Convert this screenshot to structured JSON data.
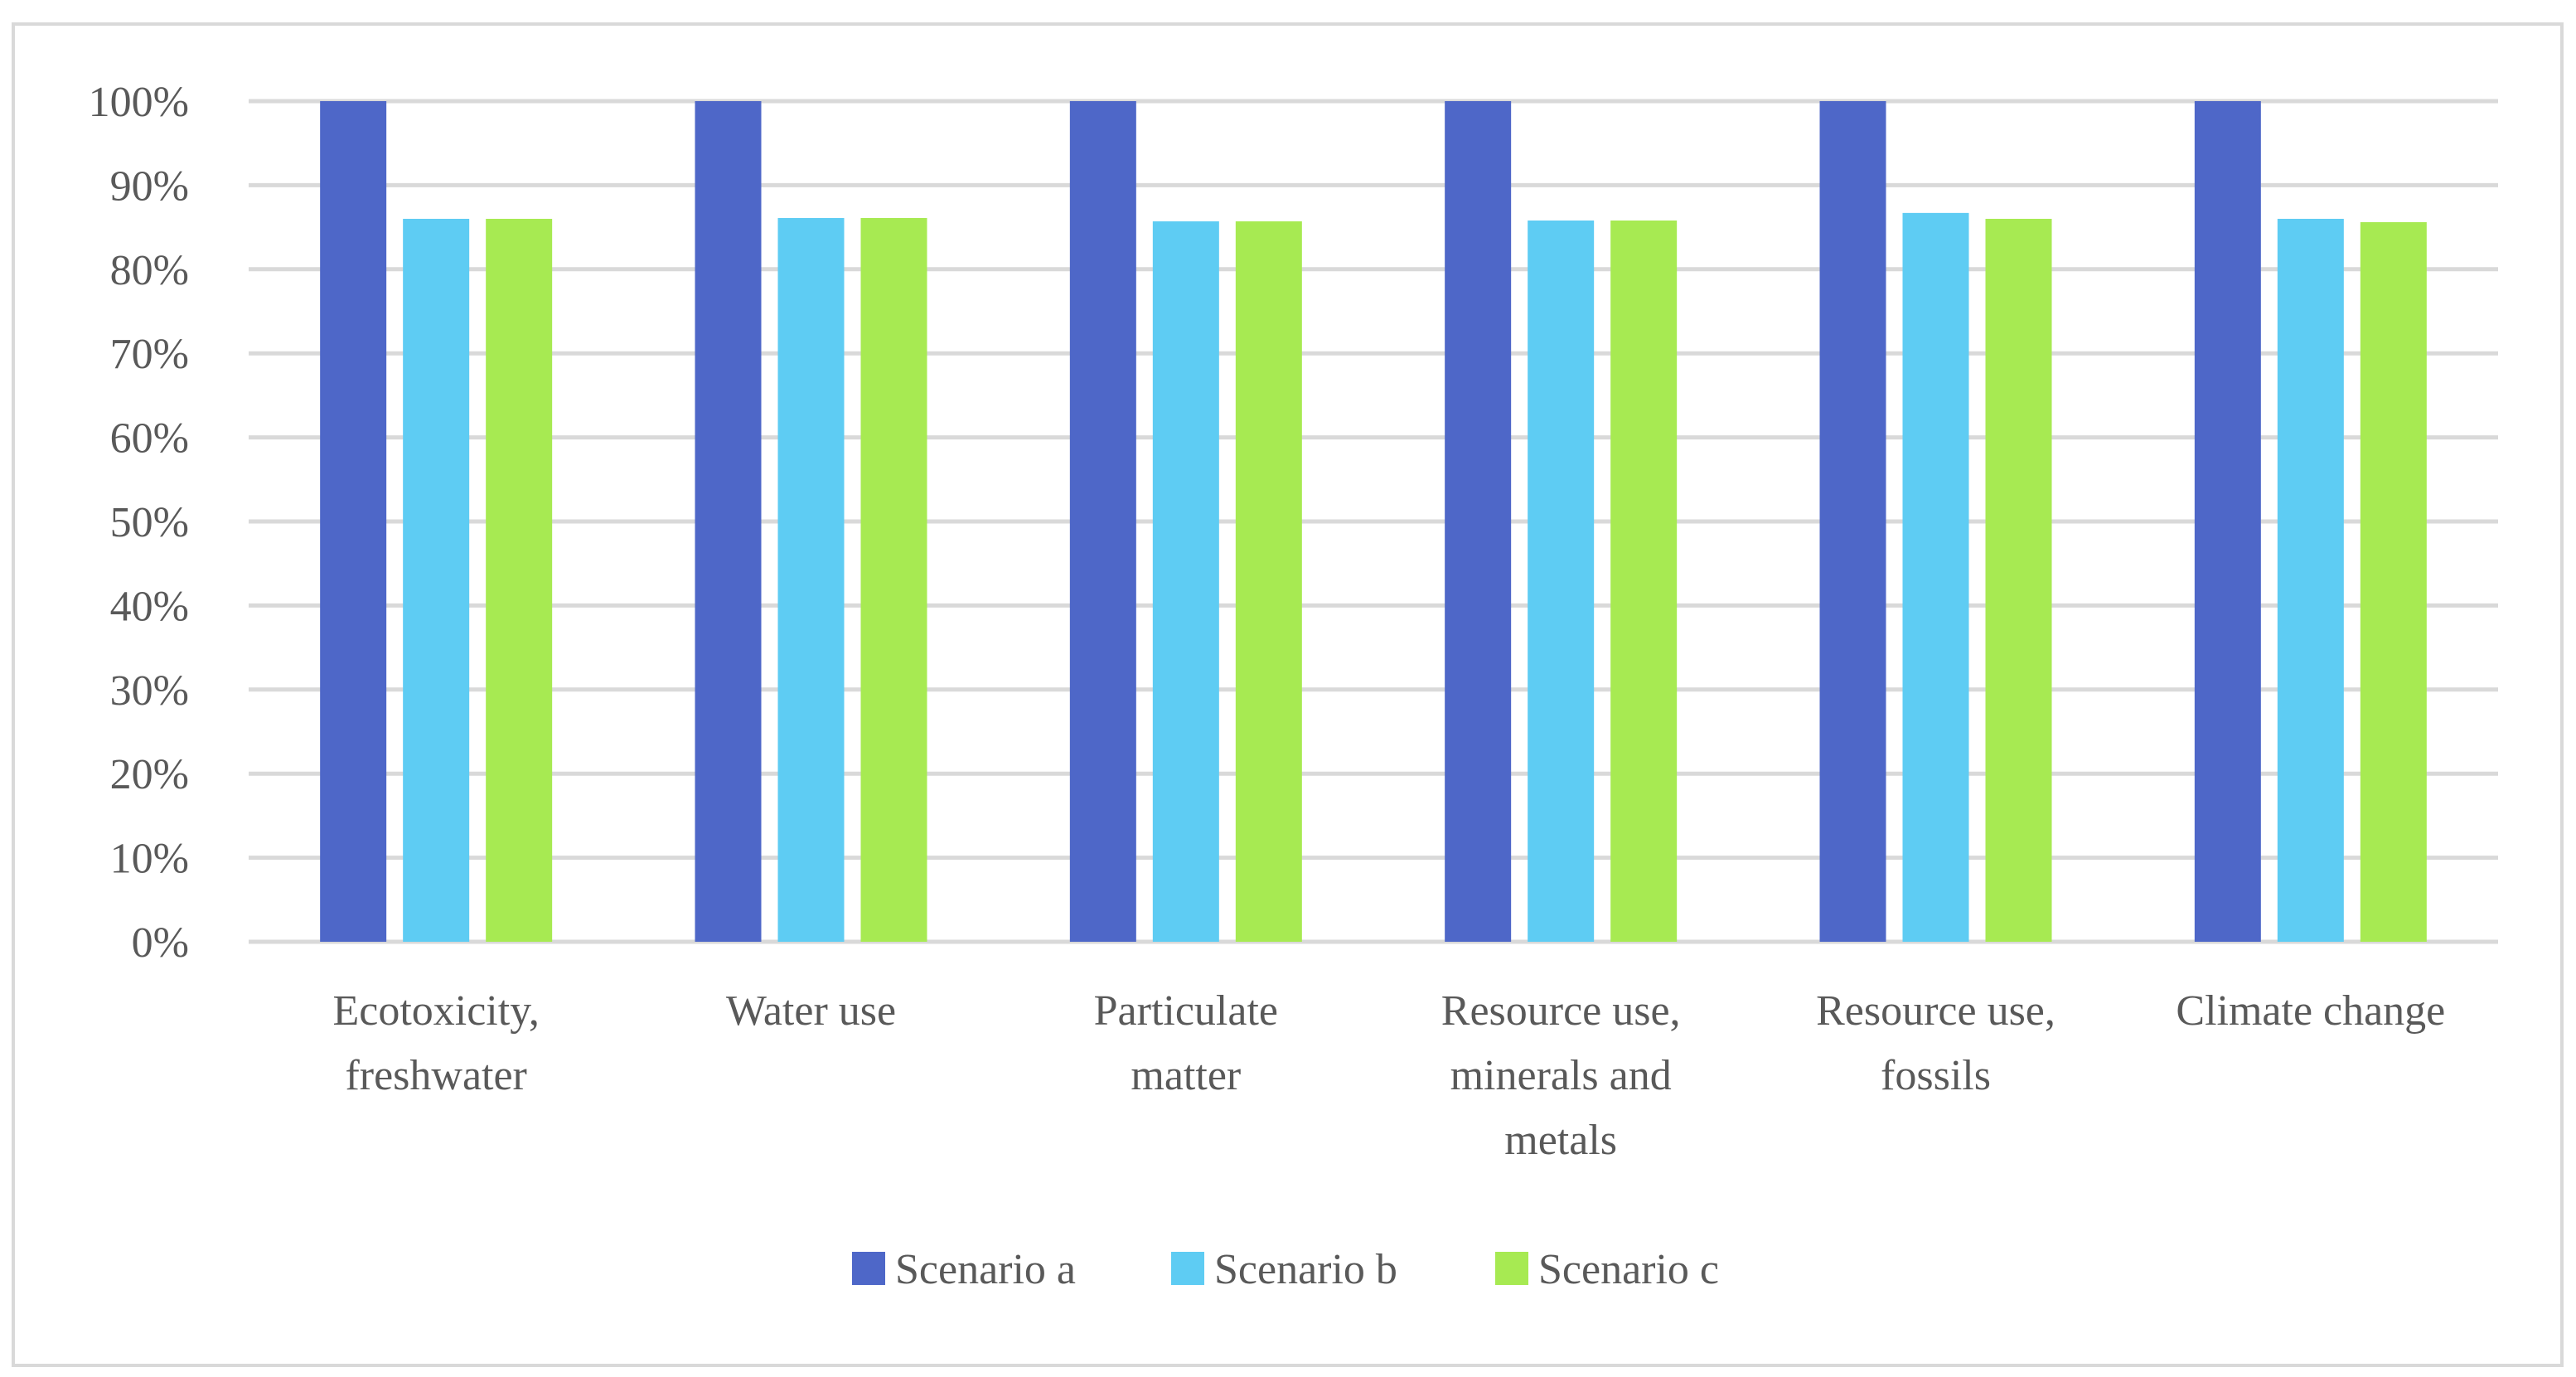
{
  "chart_data": {
    "type": "bar",
    "title": "",
    "xlabel": "",
    "ylabel": "",
    "ylim": [
      0,
      100
    ],
    "y_ticks": [
      "0%",
      "10%",
      "20%",
      "30%",
      "40%",
      "50%",
      "60%",
      "70%",
      "80%",
      "90%",
      "100%"
    ],
    "y_tick_values": [
      0,
      10,
      20,
      30,
      40,
      50,
      60,
      70,
      80,
      90,
      100
    ],
    "grid": true,
    "legend_position": "bottom",
    "categories": [
      [
        "Ecotoxicity,",
        "freshwater"
      ],
      [
        "Water use"
      ],
      [
        "Particulate",
        "matter"
      ],
      [
        "Resource use,",
        "minerals and",
        "metals"
      ],
      [
        "Resource use,",
        "fossils"
      ],
      [
        "Climate change"
      ]
    ],
    "series": [
      {
        "name": "Scenario a",
        "color": "#4E67C8",
        "values": [
          100,
          100,
          100,
          100,
          100,
          100
        ]
      },
      {
        "name": "Scenario b",
        "color": "#5ECCF3",
        "values": [
          86,
          86.1,
          85.7,
          85.8,
          86.7,
          86
        ]
      },
      {
        "name": "Scenario c",
        "color": "#A7EA52",
        "values": [
          86,
          86.1,
          85.7,
          85.8,
          86,
          85.6
        ]
      }
    ]
  }
}
